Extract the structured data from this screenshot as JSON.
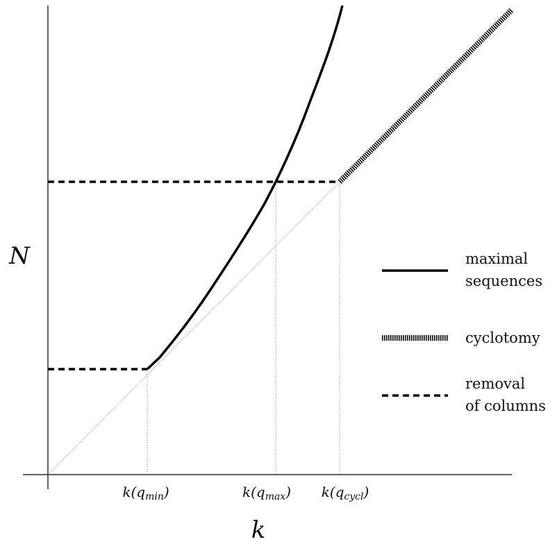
{
  "axes": {
    "y_label": "N",
    "x_label": "k"
  },
  "ticks": [
    {
      "base": "k(q",
      "sub": "min",
      "close": ")"
    },
    {
      "base": "k(q",
      "sub": "max",
      "close": ")"
    },
    {
      "base": "k(q",
      "sub": "cycl",
      "close": ")"
    }
  ],
  "legend": [
    {
      "lines": [
        "maximal",
        "sequences"
      ]
    },
    {
      "lines": [
        "cyclotomy"
      ]
    },
    {
      "lines": [
        "removal",
        "of columns"
      ]
    }
  ]
}
